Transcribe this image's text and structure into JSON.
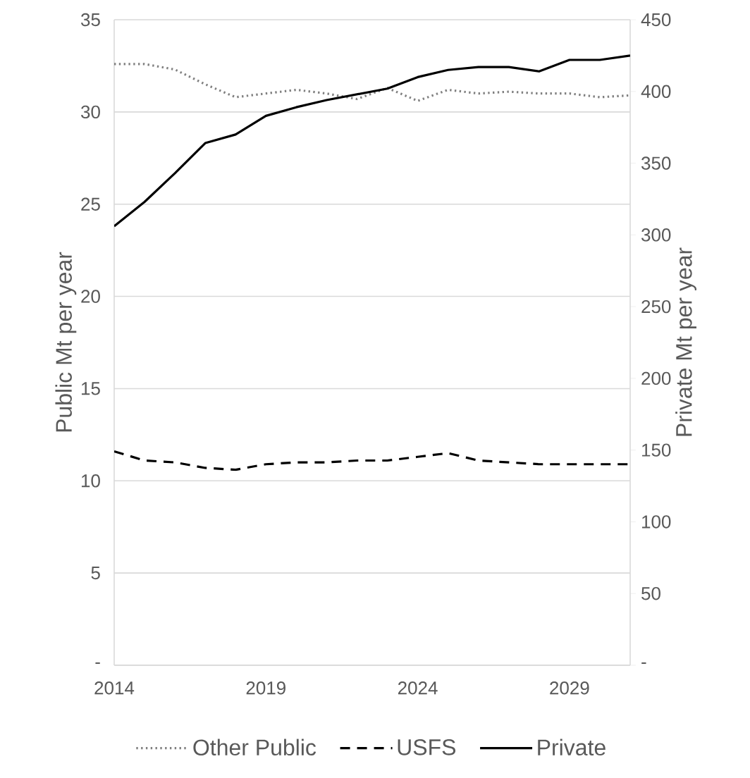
{
  "chart_data": {
    "type": "line",
    "ylabel": "Public Mt per year",
    "y2label": "Private Mt per year",
    "x": [
      2014,
      2015,
      2016,
      2017,
      2018,
      2019,
      2020,
      2021,
      2022,
      2023,
      2024,
      2025,
      2026,
      2027,
      2028,
      2029,
      2030,
      2031
    ],
    "series": [
      {
        "name": "Other Public",
        "color": "#808080",
        "line_style": "dotted",
        "values": [
          32.6,
          32.6,
          32.3,
          31.5,
          30.8,
          31.0,
          31.2,
          31.0,
          30.7,
          31.3,
          30.6,
          31.2,
          31.0,
          31.1,
          31.0,
          31.0,
          30.8,
          30.9
        ]
      },
      {
        "name": "USFS",
        "color": "#000000",
        "line_style": "dashed",
        "values": [
          11.6,
          11.1,
          11.0,
          10.7,
          10.6,
          10.9,
          11.0,
          11.0,
          11.1,
          11.1,
          11.3,
          11.5,
          11.1,
          11.0,
          10.9,
          10.9,
          10.9,
          10.9
        ]
      },
      {
        "name": "Private",
        "color": "#000000",
        "line_style": "solid",
        "axis": "y2",
        "values": [
          306,
          323,
          343,
          364,
          370,
          383,
          389,
          394,
          398,
          402,
          410,
          415,
          417,
          417,
          414,
          422,
          422,
          425
        ]
      }
    ],
    "xlim": [
      2014,
      2031
    ],
    "xticks": [
      2014,
      2019,
      2024,
      2029
    ],
    "ylim": [
      0,
      35
    ],
    "yticks": [
      {
        "value": 0,
        "label": "-"
      },
      5,
      10,
      15,
      20,
      25,
      30,
      35
    ],
    "y2lim": [
      0,
      450
    ],
    "y2ticks": [
      {
        "value": 0,
        "label": "-"
      },
      50,
      100,
      150,
      200,
      250,
      300,
      350,
      400,
      450
    ],
    "grid": "y",
    "legend": "bottom",
    "marker": "none"
  }
}
